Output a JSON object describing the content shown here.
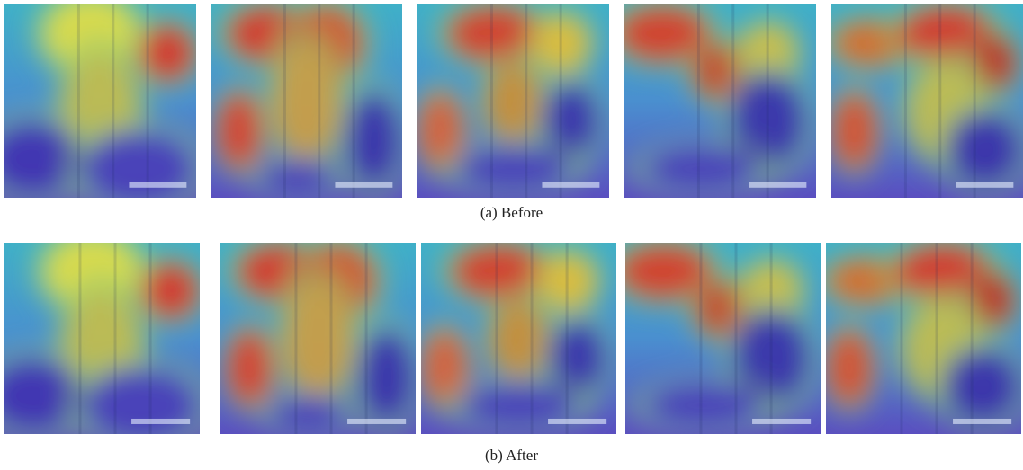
{
  "figure": {
    "panels": [
      {
        "caption": "(a) Before"
      },
      {
        "caption": "(b) After"
      }
    ]
  }
}
